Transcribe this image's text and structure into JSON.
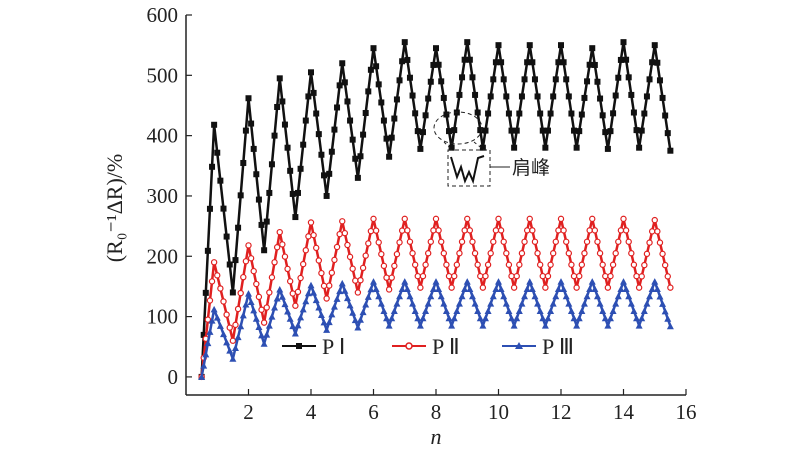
{
  "chart_data": {
    "type": "line",
    "xlabel": "n",
    "ylabel": "(R₀⁻¹ΔR)/%",
    "xlim": [
      0,
      16
    ],
    "ylim": [
      -30,
      600
    ],
    "xticks": [
      2,
      4,
      6,
      8,
      10,
      12,
      14,
      16
    ],
    "yticks": [
      0,
      100,
      200,
      300,
      400,
      500,
      600
    ],
    "grid": false,
    "legend_position": "bottom",
    "annotation": "肩峰",
    "series": [
      {
        "name": "P Ⅰ",
        "color": "#111111",
        "marker": "square",
        "x": [
          0.5,
          0.9,
          1.5,
          2.0,
          2.5,
          3.0,
          3.5,
          4.0,
          4.5,
          5.0,
          5.5,
          6.0,
          6.5,
          7.0,
          7.5,
          8.0,
          8.5,
          9.0,
          9.5,
          10.0,
          10.5,
          11.0,
          11.5,
          12.0,
          12.5,
          13.0,
          13.5,
          14.0,
          14.5,
          15.0,
          15.5
        ],
        "y": [
          0,
          418,
          140,
          462,
          210,
          495,
          265,
          505,
          300,
          520,
          330,
          545,
          365,
          555,
          378,
          545,
          380,
          555,
          380,
          550,
          380,
          550,
          380,
          550,
          380,
          545,
          378,
          555,
          380,
          550,
          375
        ]
      },
      {
        "name": "P Ⅱ",
        "color": "#e02020",
        "marker": "circle",
        "x": [
          0.5,
          0.9,
          1.5,
          2.0,
          2.5,
          3.0,
          3.5,
          4.0,
          4.5,
          5.0,
          5.5,
          6.0,
          6.5,
          7.0,
          7.5,
          8.0,
          8.5,
          9.0,
          9.5,
          10.0,
          10.5,
          11.0,
          11.5,
          12.0,
          12.5,
          13.0,
          13.5,
          14.0,
          14.5,
          15.0,
          15.5
        ],
        "y": [
          0,
          190,
          60,
          218,
          90,
          240,
          118,
          256,
          130,
          258,
          140,
          262,
          145,
          262,
          148,
          262,
          148,
          262,
          148,
          262,
          148,
          262,
          148,
          262,
          148,
          262,
          148,
          262,
          148,
          260,
          148
        ]
      },
      {
        "name": "P Ⅲ",
        "color": "#2d4fb3",
        "marker": "triangle",
        "x": [
          0.5,
          0.9,
          1.5,
          2.0,
          2.5,
          3.0,
          3.5,
          4.0,
          4.5,
          5.0,
          5.5,
          6.0,
          6.5,
          7.0,
          7.5,
          8.0,
          8.5,
          9.0,
          9.5,
          10.0,
          10.5,
          11.0,
          11.5,
          12.0,
          12.5,
          13.0,
          13.5,
          14.0,
          14.5,
          15.0,
          15.5
        ],
        "y": [
          0,
          112,
          30,
          138,
          55,
          145,
          72,
          152,
          78,
          155,
          82,
          158,
          85,
          158,
          85,
          158,
          85,
          158,
          85,
          158,
          85,
          158,
          85,
          158,
          85,
          158,
          85,
          158,
          85,
          158,
          84
        ]
      }
    ]
  }
}
